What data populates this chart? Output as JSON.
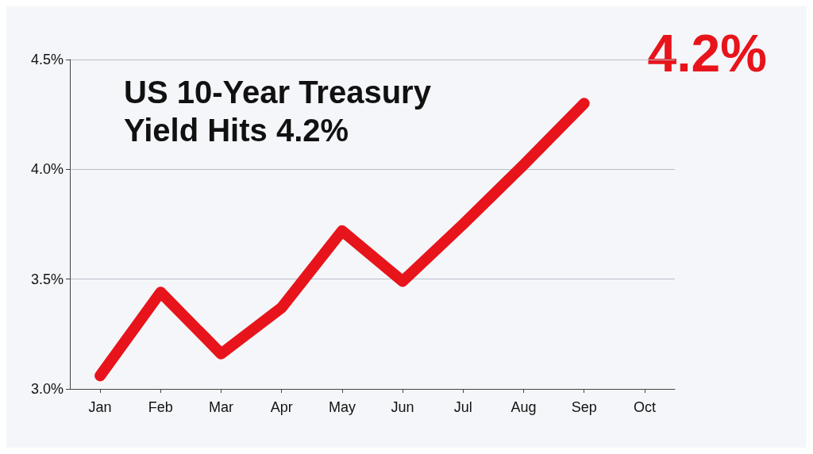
{
  "chart_data": {
    "type": "line",
    "title": "US 10-Year Treasury\nYield Hits 4.2%",
    "categories": [
      "Jan",
      "Feb",
      "Mar",
      "Apr",
      "May",
      "Jun",
      "Jul",
      "Aug",
      "Sep",
      "Oct"
    ],
    "series": [
      {
        "color": "#e8141b",
        "values": [
          3.06,
          3.44,
          3.16,
          3.37,
          3.72,
          3.49,
          3.75,
          4.02,
          4.3,
          null
        ]
      }
    ],
    "ylim": [
      3.0,
      4.5
    ],
    "yticks": [
      {
        "value": 3.0,
        "label": "3.0%"
      },
      {
        "value": 3.5,
        "label": "3.5%"
      },
      {
        "value": 4.0,
        "label": "4.0%"
      },
      {
        "value": 4.5,
        "label": "4.5%"
      }
    ],
    "annotations": [
      "4.2%"
    ],
    "grid": "y",
    "line_style": "solid"
  }
}
